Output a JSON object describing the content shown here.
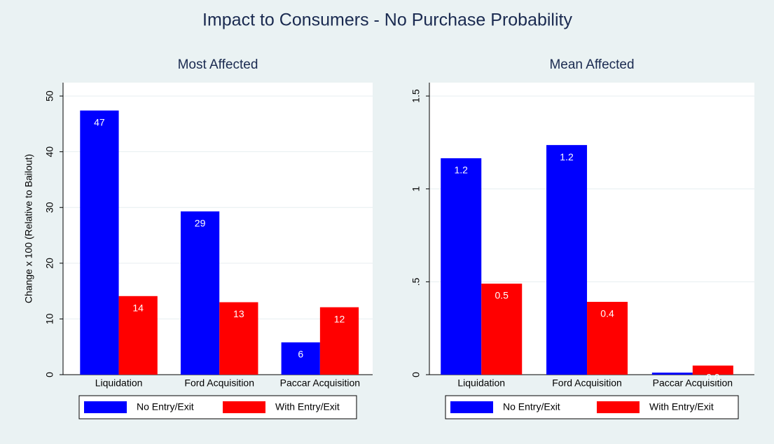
{
  "title": "Impact to Consumers - No Purchase Probability",
  "chart_data": [
    {
      "type": "bar",
      "title": "Most Affected",
      "ylabel": "Change x 100 (Relative to Bailout)",
      "categories": [
        "Liquidation",
        "Ford Acquisition",
        "Paccar Acquisition"
      ],
      "series": [
        {
          "name": "No Entry/Exit",
          "color": "#0000ff",
          "values": [
            47.4,
            29.3,
            5.8
          ],
          "value_labels": [
            "47",
            "29",
            "6"
          ]
        },
        {
          "name": "With Entry/Exit",
          "color": "#ff0000",
          "values": [
            14.1,
            13.0,
            12.1
          ],
          "value_labels": [
            "14",
            "13",
            "12"
          ]
        }
      ],
      "ylim": [
        0,
        52.4
      ],
      "yticks": [
        0,
        10,
        20,
        30,
        40,
        50
      ],
      "grid": true,
      "legend": "bottom"
    },
    {
      "type": "bar",
      "title": "Mean Affected",
      "categories": [
        "Liquidation",
        "Ford Acquisition",
        "Paccar Acquisition"
      ],
      "series": [
        {
          "name": "No Entry/Exit",
          "color": "#0000ff",
          "values": [
            1.165,
            1.236,
            0.011
          ],
          "value_labels": [
            "1.2",
            "1.2",
            null
          ]
        },
        {
          "name": "With Entry/Exit",
          "color": "#ff0000",
          "values": [
            0.49,
            0.392,
            0.049
          ],
          "value_labels": [
            "0.5",
            "0.4",
            "0.0"
          ]
        }
      ],
      "ylim": [
        0,
        1.572
      ],
      "yticks": [
        0,
        {
          "value": 0.5,
          "label": ".5"
        },
        1,
        1.5
      ],
      "grid": true,
      "legend": "bottom"
    }
  ]
}
